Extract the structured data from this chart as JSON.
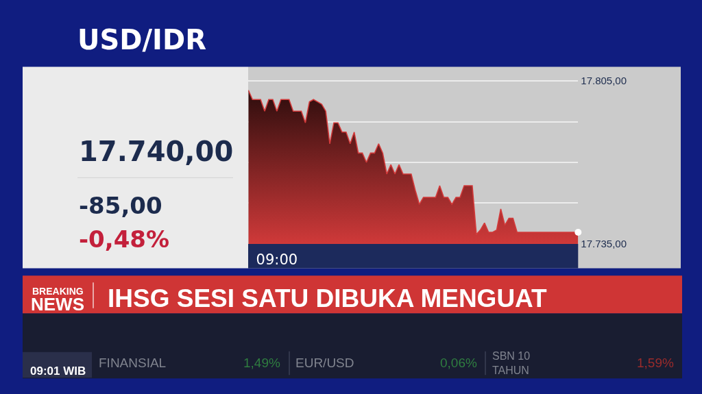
{
  "chart_data": {
    "type": "area",
    "title": "USD/IDR",
    "categories": [
      null,
      null,
      null,
      null,
      null,
      null,
      null,
      "09:00",
      null,
      null,
      null,
      null,
      null,
      null,
      null,
      null,
      null,
      null,
      null,
      null,
      null,
      null,
      null,
      null,
      null,
      null,
      null,
      null,
      null,
      null,
      null,
      null,
      null,
      null,
      null,
      null,
      null,
      null,
      null,
      null,
      null,
      null,
      null,
      null,
      null,
      null,
      null,
      null,
      null,
      null,
      null,
      null,
      null,
      null,
      null,
      null,
      null,
      null,
      null,
      null,
      null,
      null,
      null,
      null,
      null,
      null,
      null,
      null,
      null,
      null,
      null,
      null,
      null,
      null,
      null,
      null,
      null,
      null,
      null,
      null,
      null,
      null
    ],
    "series": [
      {
        "color": "#d23a3a",
        "values": [
          17801,
          17797,
          17797,
          17797,
          17792,
          17797,
          17797,
          17792,
          17797,
          17797,
          17797,
          17792,
          17792,
          17792,
          17787,
          17796,
          17797,
          17796,
          17795,
          17792,
          17778,
          17787,
          17787,
          17783,
          17783,
          17778,
          17783,
          17774,
          17774,
          17770,
          17774,
          17774,
          17778,
          17774,
          17765,
          17769,
          17765,
          17769,
          17765,
          17765,
          17765,
          17758,
          17752,
          17755,
          17755,
          17755,
          17755,
          17760,
          17755,
          17755,
          17752,
          17755,
          17755,
          17760,
          17760,
          17760,
          17739,
          17741,
          17744,
          17740,
          17740,
          17741,
          17750,
          17743,
          17746,
          17746,
          17740,
          17740,
          17740,
          17740,
          17740,
          17740,
          17740,
          17740,
          17740,
          17740,
          17740,
          17740,
          17740,
          17740,
          17740,
          17740
        ]
      },
      {
        "type": "scatter",
        "color": "#ffffff",
        "marker": "circle",
        "values": [
          null,
          null,
          null,
          null,
          null,
          null,
          null,
          null,
          null,
          null,
          null,
          null,
          null,
          null,
          null,
          null,
          null,
          null,
          null,
          null,
          null,
          null,
          null,
          null,
          null,
          null,
          null,
          null,
          null,
          null,
          null,
          null,
          null,
          null,
          null,
          null,
          null,
          null,
          null,
          null,
          null,
          null,
          null,
          null,
          null,
          null,
          null,
          null,
          null,
          null,
          null,
          null,
          null,
          null,
          null,
          null,
          null,
          null,
          null,
          null,
          null,
          null,
          null,
          null,
          null,
          null,
          null,
          null,
          null,
          null,
          null,
          null,
          null,
          null,
          null,
          null,
          null,
          null,
          null,
          null,
          null,
          17740
        ]
      }
    ],
    "ylim": [
      17735,
      17811
    ],
    "yticks": [
      {
        "value": 17805,
        "label": "17.805,00"
      },
      {
        "value": 17787.5,
        "label": null
      },
      {
        "value": 17770,
        "label": null
      },
      {
        "value": 17752.5,
        "label": null
      },
      {
        "value": 17735,
        "label": "17.735,00"
      }
    ],
    "grid": "y",
    "annotations": [
      "17.740,00",
      "-85,00",
      "-0,48%",
      "BREAKING",
      "NEWS",
      "IHSG SESI SATU DIBUKA MENGUAT",
      "FINANSIAL",
      "1,49%",
      "EUR/USD",
      "0,06%",
      "SBN 10 TAHUN",
      "1,59%",
      "09:01 WIB"
    ]
  }
}
